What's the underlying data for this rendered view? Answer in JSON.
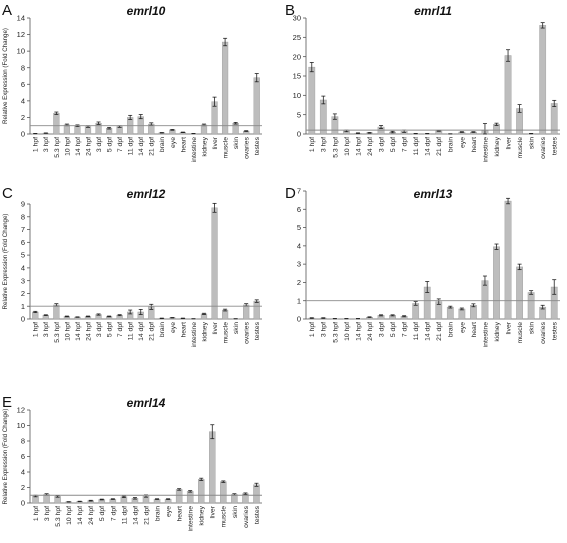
{
  "figure": {
    "ylabel": "Relative Expression (Fold Change)",
    "reference_line": 1
  },
  "chart_data": [
    {
      "type": "bar",
      "letter": "A",
      "title": "emrl10",
      "ylabel": "Relative Expression (Fold Change)",
      "ylim": [
        0,
        14
      ],
      "yticks": [
        0,
        2,
        4,
        6,
        8,
        10,
        12,
        14
      ],
      "reference_line": 1,
      "categories": [
        "1 hpf",
        "3 hpf",
        "5.3 hpf",
        "10 hpf",
        "14 hpf",
        "24 hpf",
        "3 dpf",
        "5 dpf",
        "7 dpf",
        "11 dpf",
        "14 dpf",
        "21 dpf",
        "brain",
        "eye",
        "heart",
        "intestine",
        "kidney",
        "liver",
        "muscle",
        "skin",
        "ovaries",
        "testes"
      ],
      "values": [
        0.05,
        0.1,
        2.5,
        1.1,
        1.0,
        0.9,
        1.3,
        0.7,
        0.9,
        2.0,
        2.1,
        1.2,
        0.15,
        0.5,
        0.2,
        0.05,
        1.1,
        3.9,
        11.1,
        1.3,
        0.35,
        6.8
      ],
      "errors": [
        0.02,
        0.03,
        0.15,
        0.1,
        0.1,
        0.1,
        0.15,
        0.1,
        0.1,
        0.25,
        0.25,
        0.15,
        0.03,
        0.05,
        0.03,
        0.02,
        0.1,
        0.55,
        0.45,
        0.1,
        0.05,
        0.5
      ]
    },
    {
      "type": "bar",
      "letter": "B",
      "title": "emrl11",
      "ylabel": "",
      "ylim": [
        0,
        30
      ],
      "yticks": [
        0,
        5,
        10,
        15,
        20,
        25,
        30
      ],
      "reference_line": 1,
      "categories": [
        "1 hpf",
        "3 hpf",
        "5.3 hpf",
        "10 hpf",
        "14 hpf",
        "24 hpf",
        "3 dpf",
        "5 dpf",
        "7 dpf",
        "11 dpf",
        "14 dpf",
        "21 dpf",
        "brain",
        "eye",
        "heart",
        "intestine",
        "kidney",
        "liver",
        "muscle",
        "skin",
        "ovaries",
        "testes"
      ],
      "values": [
        17.3,
        8.8,
        4.5,
        0.8,
        0.2,
        0.3,
        1.8,
        0.5,
        0.7,
        0.1,
        0.1,
        0.8,
        0.05,
        0.5,
        0.5,
        0.9,
        2.5,
        20.3,
        6.6,
        0.1,
        28.1,
        7.9
      ],
      "errors": [
        1.2,
        1.0,
        0.7,
        0.2,
        0.1,
        0.1,
        0.4,
        0.2,
        0.3,
        0.05,
        0.05,
        0.1,
        0.02,
        0.1,
        0.1,
        1.8,
        0.3,
        1.5,
        1.0,
        0.05,
        0.7,
        0.8
      ]
    },
    {
      "type": "bar",
      "letter": "C",
      "title": "emrl12",
      "ylabel": "Relative Expression (Fold Change)",
      "ylim": [
        0,
        9
      ],
      "yticks": [
        0,
        1,
        2,
        3,
        4,
        5,
        6,
        7,
        8,
        9
      ],
      "reference_line": 1,
      "categories": [
        "1 hpf",
        "3 hpf",
        "5.3 hpf",
        "10 hpf",
        "14 hpf",
        "24 hpf",
        "3 dpf",
        "5 dpf",
        "7 dpf",
        "11 dpf",
        "14 dpf",
        "21 dpf",
        "brain",
        "eye",
        "heart",
        "intestine",
        "kidney",
        "liver",
        "muscle",
        "skin",
        "ovaries",
        "testes"
      ],
      "values": [
        0.55,
        0.3,
        1.1,
        0.2,
        0.15,
        0.2,
        0.35,
        0.2,
        0.3,
        0.55,
        0.55,
        0.95,
        0.05,
        0.1,
        0.05,
        0.02,
        0.4,
        8.7,
        0.7,
        0.02,
        1.1,
        1.4
      ],
      "errors": [
        0.05,
        0.03,
        0.1,
        0.03,
        0.02,
        0.03,
        0.05,
        0.03,
        0.04,
        0.15,
        0.2,
        0.2,
        0.02,
        0.02,
        0.02,
        0.01,
        0.05,
        0.35,
        0.07,
        0.01,
        0.1,
        0.1
      ]
    },
    {
      "type": "bar",
      "letter": "D",
      "title": "emrl13",
      "ylabel": "",
      "ylim": [
        0,
        7
      ],
      "yticks": [
        0,
        1,
        2,
        3,
        4,
        5,
        6,
        7
      ],
      "reference_line": 1,
      "categories": [
        "1 hpf",
        "3 hpf",
        "5.3 hpf",
        "10 hpf",
        "14 hpf",
        "24 hpf",
        "3 dpf",
        "5 dpf",
        "7 dpf",
        "11 dpf",
        "14 dpf",
        "21 dpf",
        "brain",
        "eye",
        "heart",
        "intestine",
        "kidney",
        "liver",
        "muscle",
        "skin",
        "ovaries",
        "testes"
      ],
      "values": [
        0.05,
        0.05,
        0.02,
        0.02,
        0.02,
        0.1,
        0.2,
        0.2,
        0.15,
        0.85,
        1.75,
        0.95,
        0.65,
        0.55,
        0.75,
        2.1,
        3.95,
        6.45,
        2.85,
        1.45,
        0.65,
        1.75
      ],
      "errors": [
        0.02,
        0.02,
        0.01,
        0.01,
        0.01,
        0.02,
        0.03,
        0.03,
        0.03,
        0.1,
        0.3,
        0.15,
        0.05,
        0.05,
        0.08,
        0.25,
        0.15,
        0.15,
        0.15,
        0.1,
        0.1,
        0.4
      ]
    },
    {
      "type": "bar",
      "letter": "E",
      "title": "emrl14",
      "ylabel": "Relative Expression (Fold Change)",
      "ylim": [
        0,
        12
      ],
      "yticks": [
        0,
        2,
        4,
        6,
        8,
        10,
        12
      ],
      "reference_line": 1,
      "categories": [
        "1 hpf",
        "3 hpf",
        "5.3 hpf",
        "10 hpf",
        "14 hpf",
        "24 hpf",
        "5 dpf",
        "7 dpf",
        "11 dpf",
        "14 dpf",
        "21 dpf",
        "brain",
        "eye",
        "heart",
        "intestine",
        "kidney",
        "liver",
        "muscle",
        "skin",
        "ovaries",
        "testes"
      ],
      "values": [
        0.9,
        1.1,
        0.85,
        0.15,
        0.2,
        0.3,
        0.45,
        0.5,
        0.8,
        0.6,
        0.9,
        0.5,
        0.5,
        1.75,
        1.5,
        3.05,
        9.2,
        2.75,
        1.1,
        1.2,
        2.35
      ],
      "errors": [
        0.1,
        0.1,
        0.1,
        0.03,
        0.03,
        0.05,
        0.05,
        0.05,
        0.1,
        0.1,
        0.15,
        0.05,
        0.05,
        0.1,
        0.1,
        0.15,
        0.9,
        0.1,
        0.1,
        0.1,
        0.2
      ]
    }
  ]
}
